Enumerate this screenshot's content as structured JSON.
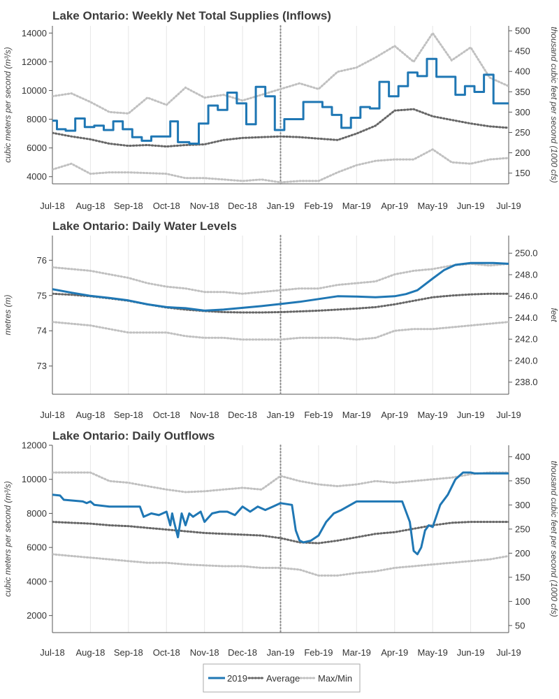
{
  "colors": {
    "series2019": "#1f77b4",
    "average": "#666666",
    "maxmin": "#c0c0c0",
    "grid": "#e6e6e6",
    "axis": "#555555"
  },
  "legend": {
    "items": [
      "2019",
      "Average",
      "Max/Min"
    ],
    "placement": "bottom-center"
  },
  "chart_data": [
    {
      "type": "line",
      "title": "Lake Ontario: Weekly Net Total Supplies (Inflows)",
      "ylabel": "cubic meters per second (m³/s)",
      "y2label": "thousand cubic feet per second (1000 cfs)",
      "x_tick_labels": [
        "Jul-18",
        "Aug-18",
        "Sep-18",
        "Oct-18",
        "Nov-18",
        "Dec-18",
        "Jan-19",
        "Feb-19",
        "Mar-19",
        "Apr-19",
        "May-19",
        "Jun-19",
        "Jul-19"
      ],
      "ylim": [
        3500,
        14500
      ],
      "yticks": [
        4000,
        6000,
        8000,
        10000,
        12000,
        14000
      ],
      "y2ticks": [
        150,
        200,
        250,
        300,
        350,
        400,
        450,
        500
      ],
      "y2_per_y": 0.0353147,
      "vline_x": 6,
      "step": true,
      "series": [
        {
          "name": "2019",
          "style": "solid",
          "x": [
            0,
            0.12,
            0.35,
            0.6,
            0.85,
            1.1,
            1.35,
            1.6,
            1.85,
            2.1,
            2.35,
            2.6,
            2.85,
            3.1,
            3.3,
            3.6,
            3.85,
            4.1,
            4.35,
            4.6,
            4.85,
            5.1,
            5.35,
            5.6,
            5.85,
            6.1,
            6.35,
            6.6,
            6.85,
            7.1,
            7.35,
            7.6,
            7.85,
            8.1,
            8.35,
            8.6,
            8.85,
            9.1,
            9.35,
            9.6,
            9.85,
            10.1,
            10.35,
            10.6,
            10.85,
            11.1,
            11.35,
            11.6,
            11.85,
            12.0
          ],
          "values": [
            7900,
            7300,
            7200,
            8050,
            7450,
            7550,
            7250,
            7850,
            7300,
            6750,
            6500,
            6800,
            6800,
            7850,
            6400,
            6300,
            7700,
            8950,
            8650,
            9850,
            9100,
            7650,
            10250,
            9600,
            7250,
            8000,
            8000,
            9200,
            9200,
            8850,
            8300,
            7400,
            8100,
            8850,
            8750,
            10600,
            9600,
            10300,
            11250,
            11000,
            12200,
            10950,
            10950,
            9700,
            10300,
            9900,
            11100,
            9100,
            9100,
            9100
          ]
        },
        {
          "name": "Average",
          "style": "dotted",
          "x": [
            0,
            0.5,
            1,
            1.5,
            2,
            2.5,
            3,
            3.5,
            4,
            4.5,
            5,
            5.5,
            6,
            6.5,
            7,
            7.5,
            8,
            8.5,
            9,
            9.5,
            10,
            10.5,
            11,
            11.5,
            12
          ],
          "values": [
            7050,
            6800,
            6600,
            6300,
            6150,
            6200,
            6100,
            6200,
            6250,
            6550,
            6700,
            6750,
            6800,
            6750,
            6650,
            6550,
            7000,
            7550,
            8600,
            8700,
            8200,
            7950,
            7700,
            7500,
            7400
          ]
        },
        {
          "name": "Max",
          "style": "dotted",
          "x": [
            0,
            0.5,
            1,
            1.5,
            2,
            2.5,
            3,
            3.5,
            4,
            4.5,
            5,
            5.5,
            6,
            6.5,
            7,
            7.5,
            8,
            8.5,
            9,
            9.5,
            10,
            10.5,
            11,
            11.5,
            12
          ],
          "values": [
            9600,
            9800,
            9200,
            8500,
            8400,
            9500,
            9000,
            10200,
            9500,
            9700,
            9300,
            9700,
            10100,
            10500,
            10100,
            11300,
            11600,
            12300,
            13100,
            12000,
            14000,
            12100,
            13000,
            10900,
            10300
          ]
        },
        {
          "name": "Min",
          "style": "dotted",
          "x": [
            0,
            0.5,
            1,
            1.5,
            2,
            2.5,
            3,
            3.5,
            4,
            4.5,
            5,
            5.5,
            6,
            6.5,
            7,
            7.5,
            8,
            8.5,
            9,
            9.5,
            10,
            10.5,
            11,
            11.5,
            12
          ],
          "values": [
            4500,
            4900,
            4200,
            4300,
            4300,
            4250,
            4200,
            3900,
            3900,
            3800,
            3700,
            3800,
            3600,
            3700,
            3700,
            4300,
            4800,
            5100,
            5200,
            5200,
            5900,
            5000,
            4900,
            5200,
            5300
          ]
        }
      ]
    },
    {
      "type": "line",
      "title": "Lake Ontario: Daily Water Levels",
      "ylabel": "metres (m)",
      "y2label": "feet",
      "x_tick_labels": [
        "Jul-18",
        "Aug-18",
        "Sep-18",
        "Oct-18",
        "Nov-18",
        "Dec-18",
        "Jan-19",
        "Feb-19",
        "Mar-19",
        "Apr-19",
        "May-19",
        "Jun-19",
        "Jul-19"
      ],
      "ylim": [
        72.2,
        76.7
      ],
      "yticks": [
        73.0,
        74.0,
        75.0,
        76.0
      ],
      "y2ticks": [
        238.0,
        240.0,
        242.0,
        244.0,
        246.0,
        248.0,
        250.0
      ],
      "y2_per_y": 3.28084,
      "vline_x": 6,
      "step": false,
      "series": [
        {
          "name": "2019",
          "style": "solid",
          "x": [
            0,
            0.5,
            1,
            1.5,
            2,
            2.5,
            3,
            3.5,
            4,
            4.5,
            5,
            5.5,
            6,
            6.5,
            7,
            7.5,
            8,
            8.5,
            9,
            9.3,
            9.6,
            10,
            10.3,
            10.6,
            11,
            11.3,
            11.6,
            12
          ],
          "values": [
            75.18,
            75.08,
            74.99,
            74.93,
            74.86,
            74.75,
            74.67,
            74.64,
            74.57,
            74.6,
            74.65,
            74.7,
            74.76,
            74.82,
            74.9,
            74.98,
            74.97,
            74.95,
            74.98,
            75.04,
            75.15,
            75.48,
            75.72,
            75.87,
            75.92,
            75.92,
            75.92,
            75.9
          ]
        },
        {
          "name": "Average",
          "style": "dotted",
          "x": [
            0,
            0.5,
            1,
            1.5,
            2,
            2.5,
            3,
            3.5,
            4,
            4.5,
            5,
            5.5,
            6,
            6.5,
            7,
            7.5,
            8,
            8.5,
            9,
            9.5,
            10,
            10.5,
            11,
            11.5,
            12
          ],
          "values": [
            75.05,
            75.02,
            74.98,
            74.92,
            74.85,
            74.75,
            74.66,
            74.6,
            74.56,
            74.53,
            74.52,
            74.52,
            74.53,
            74.55,
            74.57,
            74.6,
            74.63,
            74.67,
            74.75,
            74.85,
            74.95,
            75.0,
            75.03,
            75.05,
            75.05
          ]
        },
        {
          "name": "Max",
          "style": "dotted",
          "x": [
            0,
            0.5,
            1,
            1.5,
            2,
            2.5,
            3,
            3.5,
            4,
            4.5,
            5,
            5.5,
            6,
            6.5,
            7,
            7.5,
            8,
            8.5,
            9,
            9.5,
            10,
            10.5,
            11,
            11.5,
            12
          ],
          "values": [
            75.8,
            75.75,
            75.7,
            75.6,
            75.5,
            75.35,
            75.25,
            75.2,
            75.1,
            75.1,
            75.05,
            75.1,
            75.15,
            75.2,
            75.2,
            75.3,
            75.35,
            75.4,
            75.6,
            75.7,
            75.75,
            75.85,
            75.9,
            75.85,
            75.9
          ]
        },
        {
          "name": "Min",
          "style": "dotted",
          "x": [
            0,
            0.5,
            1,
            1.5,
            2,
            2.5,
            3,
            3.5,
            4,
            4.5,
            5,
            5.5,
            6,
            6.5,
            7,
            7.5,
            8,
            8.5,
            9,
            9.5,
            10,
            10.5,
            11,
            11.5,
            12
          ],
          "values": [
            74.25,
            74.2,
            74.15,
            74.05,
            73.95,
            73.95,
            73.95,
            73.85,
            73.8,
            73.8,
            73.75,
            73.75,
            73.75,
            73.8,
            73.8,
            73.8,
            73.75,
            73.8,
            74.0,
            74.05,
            74.05,
            74.1,
            74.15,
            74.2,
            74.25
          ]
        }
      ]
    },
    {
      "type": "line",
      "title": "Lake Ontario: Daily Outflows",
      "ylabel": "cubic meters per second (m³/s)",
      "y2label": "thousand cubic feet per second (1000 cfs)",
      "x_tick_labels": [
        "Jul-18",
        "Aug-18",
        "Sep-18",
        "Oct-18",
        "Nov-18",
        "Dec-18",
        "Jan-19",
        "Feb-19",
        "Mar-19",
        "Apr-19",
        "May-19",
        "Jun-19",
        "Jul-19"
      ],
      "ylim": [
        1000,
        12000
      ],
      "yticks": [
        2000,
        4000,
        6000,
        8000,
        10000,
        12000
      ],
      "y2ticks": [
        50,
        100,
        150,
        200,
        250,
        300,
        350,
        400
      ],
      "y2_per_y": 0.0353147,
      "vline_x": 6,
      "step": false,
      "series": [
        {
          "name": "2019",
          "style": "solid",
          "x": [
            0,
            0.2,
            0.3,
            0.8,
            0.9,
            1.0,
            1.1,
            1.5,
            2.0,
            2.3,
            2.4,
            2.6,
            2.8,
            3.0,
            3.1,
            3.15,
            3.2,
            3.3,
            3.35,
            3.4,
            3.5,
            3.6,
            3.7,
            3.9,
            4.0,
            4.2,
            4.4,
            4.6,
            4.8,
            5.0,
            5.2,
            5.4,
            5.6,
            5.8,
            6.0,
            6.3,
            6.4,
            6.5,
            6.6,
            6.8,
            7.0,
            7.2,
            7.4,
            7.6,
            8.0,
            8.5,
            9.0,
            9.2,
            9.4,
            9.5,
            9.6,
            9.7,
            9.8,
            9.9,
            10.0,
            10.2,
            10.4,
            10.6,
            10.8,
            11.0,
            11.1,
            11.3,
            11.5,
            11.8,
            12.0
          ],
          "values": [
            9100,
            9050,
            8800,
            8700,
            8600,
            8700,
            8500,
            8400,
            8400,
            8400,
            7800,
            8000,
            7900,
            8100,
            7300,
            8000,
            7500,
            6600,
            7300,
            8000,
            7300,
            8000,
            7800,
            8100,
            7500,
            8000,
            8100,
            8100,
            7900,
            8400,
            8100,
            8400,
            8200,
            8400,
            8600,
            8500,
            7000,
            6400,
            6300,
            6400,
            6700,
            7500,
            8000,
            8200,
            8700,
            8700,
            8700,
            8700,
            7500,
            5800,
            5600,
            6000,
            7000,
            7300,
            7200,
            8500,
            9100,
            10000,
            10400,
            10400,
            10350,
            10350,
            10350,
            10350,
            10350
          ]
        },
        {
          "name": "Average",
          "style": "dotted",
          "x": [
            0,
            0.5,
            1,
            1.5,
            2,
            2.5,
            3,
            3.5,
            4,
            4.5,
            5,
            5.5,
            6,
            6.5,
            7,
            7.5,
            8,
            8.5,
            9,
            9.5,
            10,
            10.5,
            11,
            11.5,
            12
          ],
          "values": [
            7500,
            7450,
            7400,
            7300,
            7250,
            7150,
            7050,
            6950,
            6850,
            6800,
            6750,
            6700,
            6550,
            6300,
            6250,
            6400,
            6600,
            6800,
            6900,
            7100,
            7300,
            7450,
            7500,
            7500,
            7500
          ]
        },
        {
          "name": "Max",
          "style": "dotted",
          "x": [
            0,
            0.5,
            1,
            1.5,
            2,
            2.5,
            3,
            3.5,
            4,
            4.5,
            5,
            5.5,
            6,
            6.5,
            7,
            7.5,
            8,
            8.5,
            9,
            9.5,
            10,
            10.5,
            11,
            11.5,
            12
          ],
          "values": [
            10400,
            10400,
            10400,
            9900,
            9800,
            9600,
            9400,
            9250,
            9300,
            9400,
            9500,
            9400,
            10200,
            9900,
            9700,
            9600,
            9700,
            9900,
            9800,
            9900,
            10000,
            10100,
            10300,
            10400,
            10400
          ]
        },
        {
          "name": "Min",
          "style": "dotted",
          "x": [
            0,
            0.5,
            1,
            1.5,
            2,
            2.5,
            3,
            3.5,
            4,
            4.5,
            5,
            5.5,
            6,
            6.5,
            7,
            7.5,
            8,
            8.5,
            9,
            9.5,
            10,
            10.5,
            11,
            11.5,
            12
          ],
          "values": [
            5600,
            5500,
            5400,
            5300,
            5200,
            5100,
            5100,
            5000,
            4950,
            4900,
            4900,
            4800,
            4800,
            4700,
            4350,
            4350,
            4500,
            4600,
            4800,
            4900,
            5000,
            5100,
            5200,
            5300,
            5500
          ]
        }
      ]
    }
  ]
}
